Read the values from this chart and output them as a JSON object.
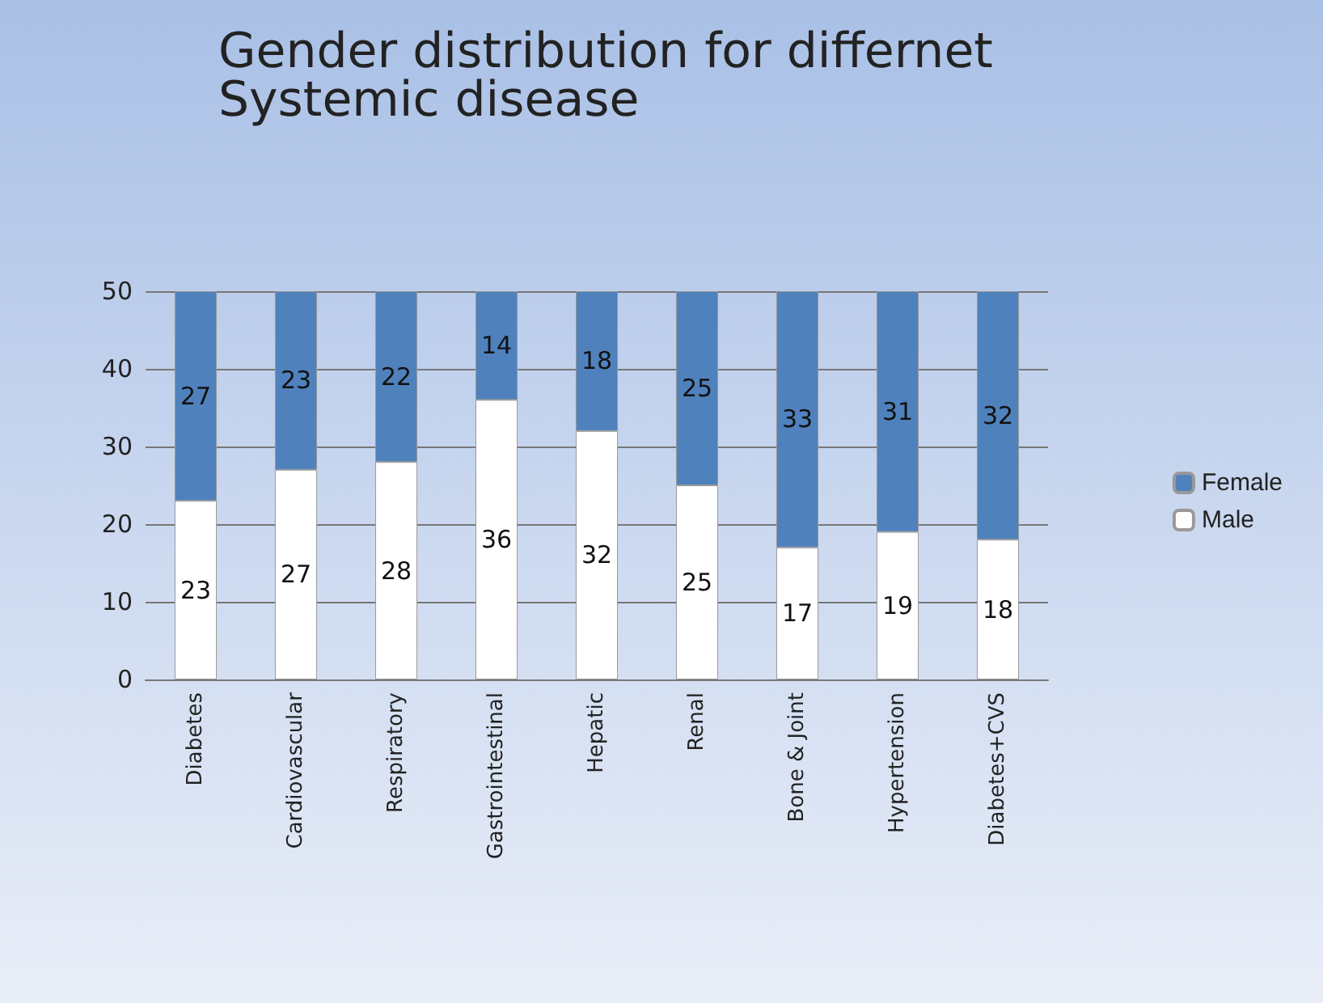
{
  "chart_data": {
    "type": "bar",
    "title": "Gender distribution for differnet Systemic disease",
    "categories": [
      "Diabetes",
      "Cardiovascular",
      "Respiratory",
      "Gastrointestinal",
      "Hepatic",
      "Renal",
      "Bone & Joint",
      "Hypertension",
      "Diabetes+CVS"
    ],
    "series": [
      {
        "name": "Male",
        "color": "#ffffff",
        "values": [
          23,
          27,
          28,
          36,
          32,
          25,
          17,
          19,
          18
        ]
      },
      {
        "name": "Female",
        "color": "#4f81bd",
        "values": [
          27,
          23,
          22,
          14,
          18,
          25,
          33,
          31,
          32
        ]
      }
    ],
    "stacked": true,
    "ylim": [
      0,
      50
    ],
    "yticks": [
      0,
      10,
      20,
      30,
      40,
      50
    ],
    "grid": "y",
    "legend": "right",
    "data_labels": true
  }
}
